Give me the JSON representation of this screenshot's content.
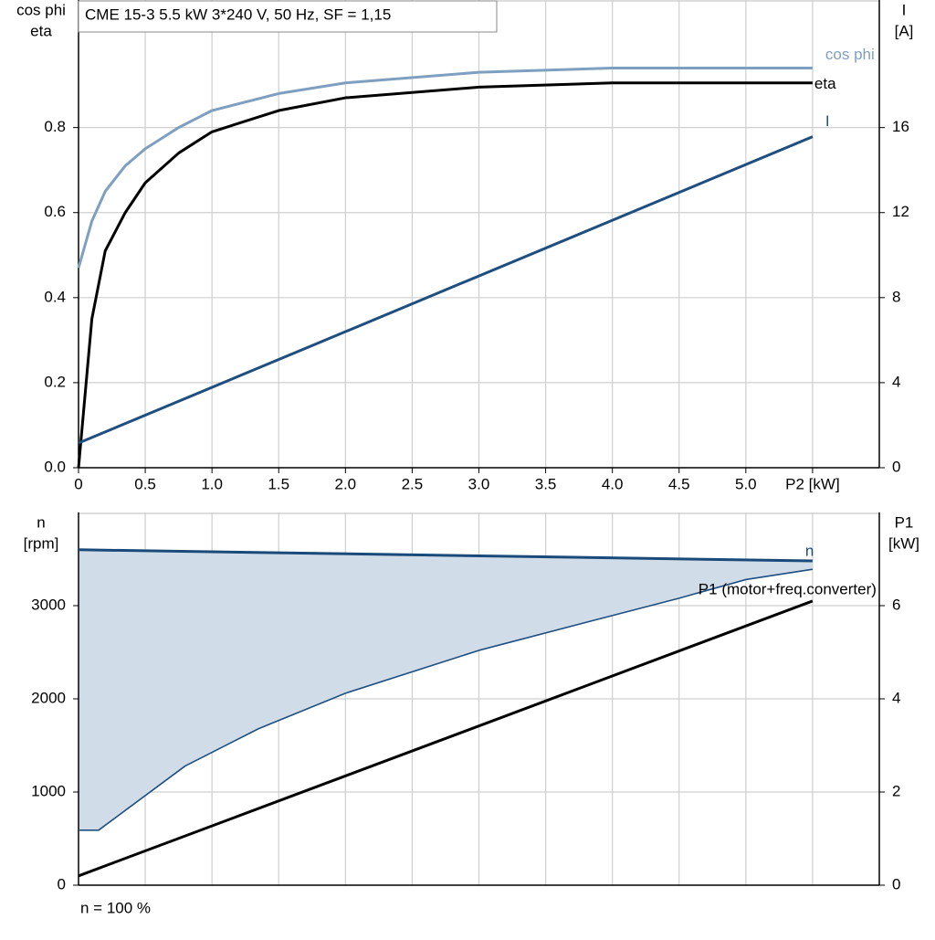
{
  "chart_data": [
    {
      "type": "line",
      "title": "CME 15-3   5.5 kW   3*240 V, 50 Hz, SF = 1,15",
      "y_label": [
        "cos phi",
        "eta"
      ],
      "y2_label": [
        "I",
        "[A]"
      ],
      "xlim": [
        0,
        6
      ],
      "xticks": [
        0,
        0.5,
        {
          "value": 1,
          "label": "1.0"
        },
        1.5,
        {
          "value": 2,
          "label": "2.0"
        },
        2.5,
        {
          "value": 3,
          "label": "3.0"
        },
        3.5,
        {
          "value": 4,
          "label": "4.0"
        },
        4.5,
        {
          "value": 5,
          "label": "5.0"
        },
        {
          "value": 5.5,
          "label": "P2 [kW]"
        }
      ],
      "ylim": [
        0,
        1.1
      ],
      "yticks": [
        {
          "value": 0,
          "label": "0.0"
        },
        0.2,
        0.4,
        0.6,
        0.8
      ],
      "y2lim": [
        0,
        22
      ],
      "y2ticks": [
        0,
        4,
        8,
        12,
        16
      ],
      "grid": true,
      "x": [
        0,
        0.1,
        0.2,
        0.35,
        0.5,
        0.75,
        1.0,
        1.5,
        2.0,
        3.0,
        4.0,
        5.5
      ],
      "series": [
        {
          "name": "cos phi",
          "color": "#7f9fc0",
          "values": [
            0.47,
            0.58,
            0.65,
            0.71,
            0.75,
            0.8,
            0.84,
            0.88,
            0.905,
            0.93,
            0.94,
            0.94
          ]
        },
        {
          "name": "eta",
          "color": "#000000",
          "values": [
            0,
            0.35,
            0.51,
            0.6,
            0.67,
            0.74,
            0.79,
            0.84,
            0.87,
            0.895,
            0.905,
            0.905
          ]
        },
        {
          "name": "I",
          "color": "#1f4e80",
          "axis": "y2",
          "x": [
            0,
            5.5
          ],
          "values": [
            1.16,
            15.57
          ]
        }
      ]
    },
    {
      "type": "line",
      "note": "n = 100 %",
      "y_label": [
        "n",
        "[rpm]"
      ],
      "y2_label": [
        "P1",
        "[kW]"
      ],
      "xlim": [
        0,
        6
      ],
      "ylim": [
        0,
        4000
      ],
      "yticks": [
        0,
        1000,
        2000,
        3000
      ],
      "y2lim": [
        0,
        8
      ],
      "y2ticks": [
        0,
        2,
        4,
        6
      ],
      "grid": true,
      "fill_color": "#d0dce8",
      "series": [
        {
          "name": "n",
          "color": "#1a4a7a",
          "x": [
            0,
            5.5
          ],
          "values": [
            3600,
            3480
          ]
        },
        {
          "color": "#1f4e80",
          "x": [
            0,
            0.15,
            0.8,
            1.35,
            2.0,
            3.0,
            3.8,
            4.5,
            5.0,
            5.5
          ],
          "values": [
            590,
            590,
            1280,
            1680,
            2060,
            2520,
            2820,
            3080,
            3280,
            3390
          ]
        },
        {
          "name": "P1 (motor+freq.converter)",
          "color": "#000000",
          "axis": "y2",
          "x": [
            0,
            5.5
          ],
          "values": [
            0.2,
            6.1
          ]
        }
      ]
    }
  ]
}
